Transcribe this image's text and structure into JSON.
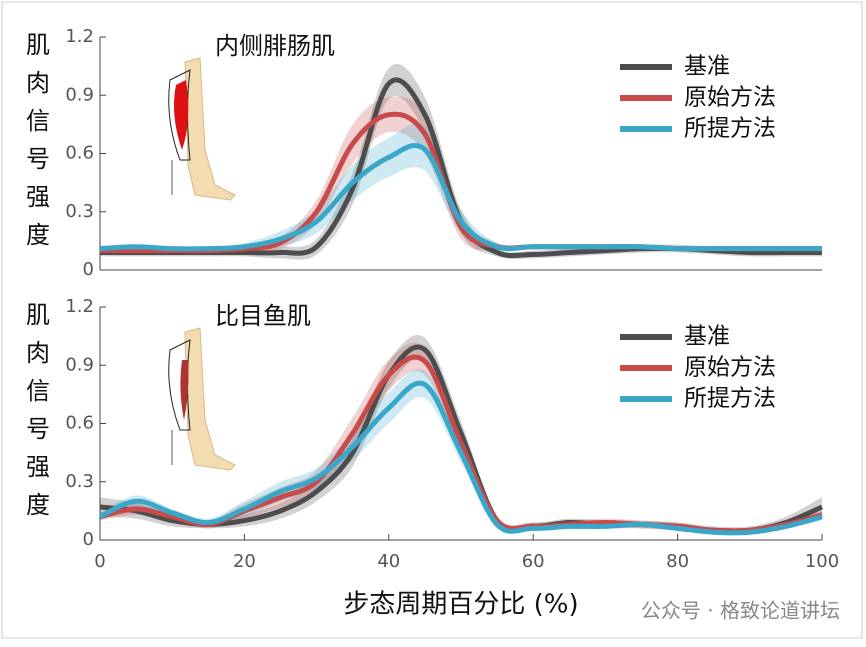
{
  "chart_data": [
    {
      "type": "line",
      "title": "内侧腓肠肌",
      "ylabel": "肌肉信号强度",
      "x": [
        0,
        5,
        10,
        15,
        20,
        25,
        30,
        35,
        40,
        45,
        50,
        55,
        60,
        65,
        70,
        75,
        80,
        85,
        90,
        95,
        100
      ],
      "xlim": [
        0,
        100
      ],
      "ylim": [
        0,
        1.2
      ],
      "yticks": [
        0,
        0.3,
        0.6,
        0.9,
        1.2
      ],
      "legend": "upper right",
      "series": [
        {
          "name": "基准",
          "color": "#4d4d4d",
          "values": [
            0.09,
            0.09,
            0.09,
            0.09,
            0.09,
            0.09,
            0.12,
            0.42,
            0.96,
            0.8,
            0.25,
            0.09,
            0.08,
            0.09,
            0.1,
            0.11,
            0.11,
            0.1,
            0.09,
            0.09,
            0.09
          ],
          "band": [
            0.02,
            0.02,
            0.02,
            0.02,
            0.02,
            0.03,
            0.04,
            0.08,
            0.08,
            0.09,
            0.06,
            0.02,
            0.02,
            0.02,
            0.02,
            0.02,
            0.02,
            0.02,
            0.02,
            0.02,
            0.02
          ]
        },
        {
          "name": "原始方法",
          "color": "#c84a4a",
          "values": [
            0.1,
            0.1,
            0.1,
            0.1,
            0.11,
            0.14,
            0.3,
            0.65,
            0.8,
            0.7,
            0.22,
            0.12,
            0.12,
            0.12,
            0.12,
            0.12,
            0.11,
            0.11,
            0.11,
            0.11,
            0.11
          ],
          "band": [
            0.01,
            0.01,
            0.01,
            0.01,
            0.02,
            0.03,
            0.06,
            0.1,
            0.09,
            0.1,
            0.06,
            0.02,
            0.01,
            0.01,
            0.01,
            0.01,
            0.01,
            0.01,
            0.01,
            0.01,
            0.01
          ]
        },
        {
          "name": "所提方法",
          "color": "#3aa7c9",
          "values": [
            0.11,
            0.12,
            0.11,
            0.11,
            0.12,
            0.16,
            0.25,
            0.45,
            0.58,
            0.62,
            0.25,
            0.12,
            0.12,
            0.12,
            0.12,
            0.12,
            0.11,
            0.11,
            0.11,
            0.11,
            0.11
          ],
          "band": [
            0.01,
            0.01,
            0.01,
            0.01,
            0.02,
            0.04,
            0.06,
            0.09,
            0.1,
            0.11,
            0.06,
            0.02,
            0.01,
            0.01,
            0.01,
            0.01,
            0.01,
            0.01,
            0.01,
            0.01,
            0.01
          ]
        }
      ]
    },
    {
      "type": "line",
      "title": "比目鱼肌",
      "ylabel": "肌肉信号强度",
      "xlabel": "步态周期百分比 (%)",
      "x": [
        0,
        5,
        10,
        15,
        20,
        25,
        30,
        35,
        40,
        45,
        50,
        55,
        60,
        65,
        70,
        75,
        80,
        85,
        90,
        95,
        100
      ],
      "xlim": [
        0,
        100
      ],
      "xticks": [
        0,
        20,
        40,
        60,
        80,
        100
      ],
      "ylim": [
        0,
        1.2
      ],
      "yticks": [
        0,
        0.3,
        0.6,
        0.9,
        1.2
      ],
      "legend": "upper right",
      "series": [
        {
          "name": "基准",
          "color": "#4d4d4d",
          "values": [
            0.17,
            0.15,
            0.1,
            0.08,
            0.1,
            0.15,
            0.25,
            0.45,
            0.85,
            0.98,
            0.55,
            0.1,
            0.07,
            0.09,
            0.08,
            0.08,
            0.07,
            0.05,
            0.05,
            0.09,
            0.17
          ],
          "band": [
            0.05,
            0.04,
            0.03,
            0.02,
            0.03,
            0.04,
            0.05,
            0.07,
            0.07,
            0.06,
            0.06,
            0.02,
            0.02,
            0.02,
            0.02,
            0.02,
            0.02,
            0.02,
            0.02,
            0.03,
            0.05
          ]
        },
        {
          "name": "原始方法",
          "color": "#c84a4a",
          "values": [
            0.12,
            0.16,
            0.12,
            0.08,
            0.15,
            0.22,
            0.3,
            0.55,
            0.85,
            0.92,
            0.5,
            0.1,
            0.07,
            0.08,
            0.09,
            0.08,
            0.07,
            0.05,
            0.05,
            0.08,
            0.13
          ],
          "band": [
            0.02,
            0.03,
            0.02,
            0.02,
            0.04,
            0.05,
            0.06,
            0.08,
            0.08,
            0.07,
            0.06,
            0.02,
            0.02,
            0.02,
            0.02,
            0.02,
            0.02,
            0.01,
            0.01,
            0.02,
            0.02
          ]
        },
        {
          "name": "所提方法",
          "color": "#3aa7c9",
          "values": [
            0.12,
            0.2,
            0.14,
            0.09,
            0.16,
            0.25,
            0.32,
            0.48,
            0.68,
            0.8,
            0.45,
            0.08,
            0.06,
            0.07,
            0.07,
            0.08,
            0.06,
            0.04,
            0.04,
            0.07,
            0.12
          ],
          "band": [
            0.02,
            0.03,
            0.02,
            0.02,
            0.04,
            0.05,
            0.05,
            0.07,
            0.08,
            0.07,
            0.05,
            0.02,
            0.01,
            0.01,
            0.01,
            0.01,
            0.01,
            0.01,
            0.01,
            0.01,
            0.02
          ]
        }
      ]
    }
  ],
  "watermark": "公众号 · 格致论道讲坛"
}
